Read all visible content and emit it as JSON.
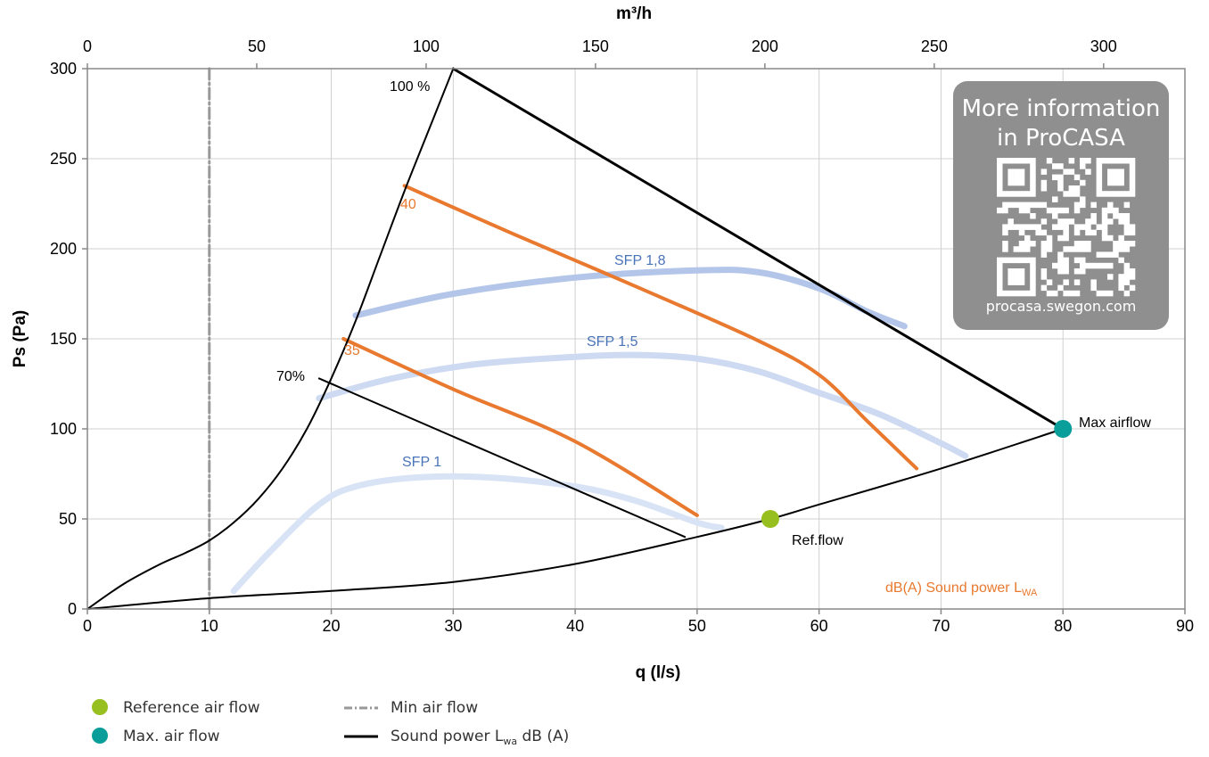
{
  "chart_data": {
    "type": "line",
    "xlabel": "q (l/s)",
    "ylabel": "Ps (Pa)",
    "x2label": "m³/h",
    "xlim": [
      0,
      90
    ],
    "ylim": [
      0,
      300
    ],
    "x2lim": [
      0,
      324
    ],
    "xticks": [
      0,
      10,
      20,
      30,
      40,
      50,
      60,
      70,
      80,
      90
    ],
    "yticks": [
      0,
      50,
      100,
      150,
      200,
      250,
      300
    ],
    "x2ticks": [
      0,
      50,
      100,
      150,
      200,
      250,
      300
    ],
    "grid": true,
    "series": [
      {
        "name": "100 %",
        "kind": "fan-curve",
        "color": "#000000",
        "points": [
          [
            0,
            0
          ],
          [
            3,
            14
          ],
          [
            6,
            25
          ],
          [
            8,
            31
          ],
          [
            10,
            38
          ],
          [
            12,
            48
          ],
          [
            14,
            61
          ],
          [
            16,
            78
          ],
          [
            18,
            100
          ],
          [
            20,
            128
          ],
          [
            22,
            160
          ],
          [
            24,
            196
          ],
          [
            26,
            232
          ],
          [
            28,
            266
          ],
          [
            30,
            300
          ]
        ]
      },
      {
        "name": "70%",
        "kind": "fan-curve",
        "color": "#000000",
        "points": [
          [
            19,
            128
          ],
          [
            49,
            40
          ]
        ]
      },
      {
        "name": "",
        "kind": "upper-boundary",
        "color": "#000000",
        "points": [
          [
            30,
            300
          ],
          [
            80,
            100
          ]
        ]
      },
      {
        "name": "",
        "kind": "system-curve",
        "color": "#000000",
        "points": [
          [
            0,
            0
          ],
          [
            10,
            6
          ],
          [
            20,
            10
          ],
          [
            30,
            15
          ],
          [
            40,
            25
          ],
          [
            50,
            40
          ],
          [
            56,
            50
          ],
          [
            60,
            58
          ],
          [
            70,
            78
          ],
          [
            80,
            100
          ]
        ]
      },
      {
        "name": "40",
        "kind": "sound-power",
        "color": "#e8792f",
        "points": [
          [
            26,
            235
          ],
          [
            35,
            208
          ],
          [
            45,
            179
          ],
          [
            55,
            149
          ],
          [
            60,
            130
          ],
          [
            64,
            104
          ],
          [
            68,
            78
          ]
        ]
      },
      {
        "name": "35",
        "kind": "sound-power",
        "color": "#e8792f",
        "points": [
          [
            21,
            150
          ],
          [
            30,
            122
          ],
          [
            40,
            93
          ],
          [
            50,
            52
          ]
        ]
      },
      {
        "name": "SFP 1,8",
        "kind": "sfp",
        "color": "#b3c6ea",
        "points": [
          [
            22,
            163
          ],
          [
            30,
            175
          ],
          [
            40,
            184
          ],
          [
            50,
            188
          ],
          [
            55,
            187
          ],
          [
            60,
            178
          ],
          [
            64,
            165
          ],
          [
            67,
            157
          ]
        ]
      },
      {
        "name": "SFP 1,5",
        "kind": "sfp",
        "color": "#cddaf2",
        "points": [
          [
            19,
            117
          ],
          [
            25,
            128
          ],
          [
            32,
            136
          ],
          [
            40,
            140
          ],
          [
            45,
            141
          ],
          [
            50,
            139
          ],
          [
            55,
            132
          ],
          [
            60,
            120
          ],
          [
            65,
            108
          ],
          [
            70,
            92
          ],
          [
            72,
            85
          ]
        ]
      },
      {
        "name": "SFP 1",
        "kind": "sfp",
        "color": "#d8e4f6",
        "points": [
          [
            12,
            10
          ],
          [
            15,
            32
          ],
          [
            19,
            58
          ],
          [
            22,
            68
          ],
          [
            27,
            73
          ],
          [
            33,
            73
          ],
          [
            40,
            68
          ],
          [
            45,
            60
          ],
          [
            50,
            48
          ],
          [
            52,
            45
          ]
        ]
      },
      {
        "name": "Min air flow",
        "kind": "vertical-reference",
        "color": "#999999",
        "points": [
          [
            10,
            0
          ],
          [
            10,
            300
          ]
        ]
      }
    ],
    "markers": [
      {
        "name": "Ref.flow",
        "x": 56,
        "y": 50,
        "color": "#97bf1f"
      },
      {
        "name": "Max airflow",
        "x": 80,
        "y": 100,
        "color": "#0a9e9a"
      }
    ],
    "annotations": {
      "fan_100": "100 %",
      "fan_70": "70%",
      "db_40": "40",
      "db_35": "35",
      "sfp_18": "SFP 1,8",
      "sfp_15": "SFP 1,5",
      "sfp_1": "SFP 1",
      "ref_flow": "Ref.flow",
      "max_airflow": "Max airflow",
      "sound_power_main": "dB(A) Sound power L",
      "sound_power_sub": "WA"
    }
  },
  "qr_box": {
    "line1": "More information",
    "line2": "in ProCASA",
    "url": "procasa.swegon.com"
  },
  "legend": {
    "reference": "Reference air flow",
    "max": "Max. air flow",
    "min": "Min air flow",
    "sound_main": "Sound power L",
    "sound_sub": "wa",
    "sound_tail": " dB (A)"
  },
  "colors": {
    "sound_power": "#e8792f",
    "sfp_text": "#4a74b8",
    "reference": "#97bf1f",
    "max": "#0a9e9a",
    "min_line": "#999999",
    "qr_bg": "#8f8f8f",
    "grid": "#d0d0d0"
  }
}
